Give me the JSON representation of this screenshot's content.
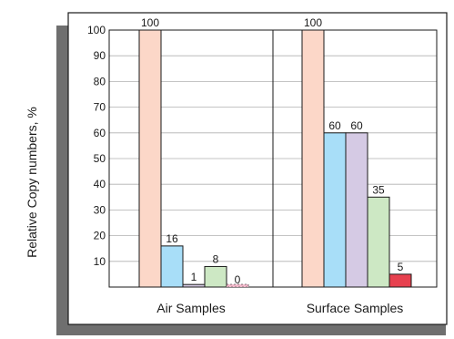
{
  "chart_data": {
    "type": "bar",
    "ylabel": "Relative Copy numbers, %",
    "ylim": [
      0,
      100
    ],
    "yticks": [
      10,
      20,
      30,
      40,
      50,
      60,
      70,
      80,
      90,
      100
    ],
    "grid": true,
    "legend": "none",
    "categories": [
      "Air Samples",
      "Surface Samples"
    ],
    "series": [
      {
        "color": "#fcd7c8",
        "values": [
          100,
          100
        ]
      },
      {
        "color": "#a8def8",
        "values": [
          16,
          60
        ]
      },
      {
        "color": "#d5cae4",
        "values": [
          1,
          60
        ]
      },
      {
        "color": "#cde8c4",
        "values": [
          8,
          35
        ]
      },
      {
        "color": "#f2b9cb",
        "values": [
          0,
          5
        ]
      }
    ],
    "data_labels": [
      [
        "100",
        "16",
        "1",
        "8",
        "0"
      ],
      [
        "100",
        "60",
        "60",
        "35",
        "5"
      ]
    ]
  },
  "colors": {
    "shadow": "#6f6f6f",
    "frame": "#1a1a1a",
    "grid": "#b0b0b0",
    "surface_5_bar": "#e7414f"
  }
}
